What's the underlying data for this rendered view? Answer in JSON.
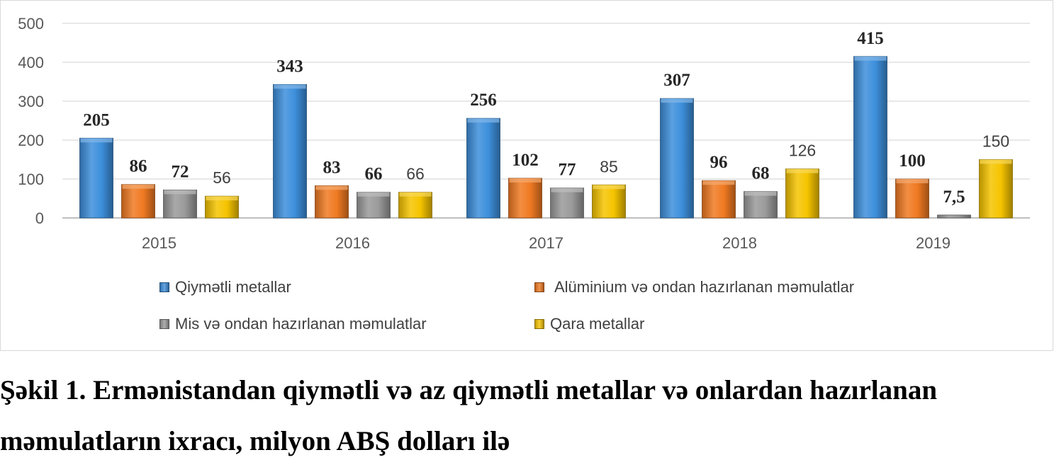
{
  "chart_data": {
    "type": "bar",
    "categories": [
      "2015",
      "2016",
      "2017",
      "2018",
      "2019"
    ],
    "ylim": [
      0,
      500
    ],
    "yticks": [
      0,
      100,
      200,
      300,
      400,
      500
    ],
    "grid": true,
    "legend_placement": "bottom",
    "series": [
      {
        "name": "Qiymətli metallar",
        "values": [
          205,
          343,
          256,
          307,
          415
        ],
        "labels": [
          "205",
          "343",
          "256",
          "307",
          "415"
        ],
        "color": "#3d8fdc",
        "label_style": "serif-bold"
      },
      {
        "name": "Alüminium və ondan hazırlanan məmulatlar",
        "values": [
          86,
          83,
          102,
          96,
          100
        ],
        "labels": [
          "86",
          "83",
          "102",
          "96",
          "100"
        ],
        "color": "#f07a22",
        "label_style": "serif-bold"
      },
      {
        "name": "Mis və ondan hazırlanan məmulatlar",
        "values": [
          72,
          66,
          77,
          68,
          7.5
        ],
        "labels": [
          "72",
          "66",
          "77",
          "68",
          "7,5"
        ],
        "color": "#9a9a9a",
        "label_style": "serif-bold"
      },
      {
        "name": "Qara metallar",
        "values": [
          56,
          66,
          85,
          126,
          150
        ],
        "labels": [
          "56",
          "66",
          "85",
          "126",
          "150"
        ],
        "color": "#f5c400",
        "label_style": "sans"
      }
    ]
  },
  "caption": {
    "line1": "Şəkil 1. Ermənistandan qiymətli və az qiymətli metallar və onlardan hazırlanan",
    "line2": "məmulatların  ixracı, milyon ABŞ dolları ilə"
  }
}
